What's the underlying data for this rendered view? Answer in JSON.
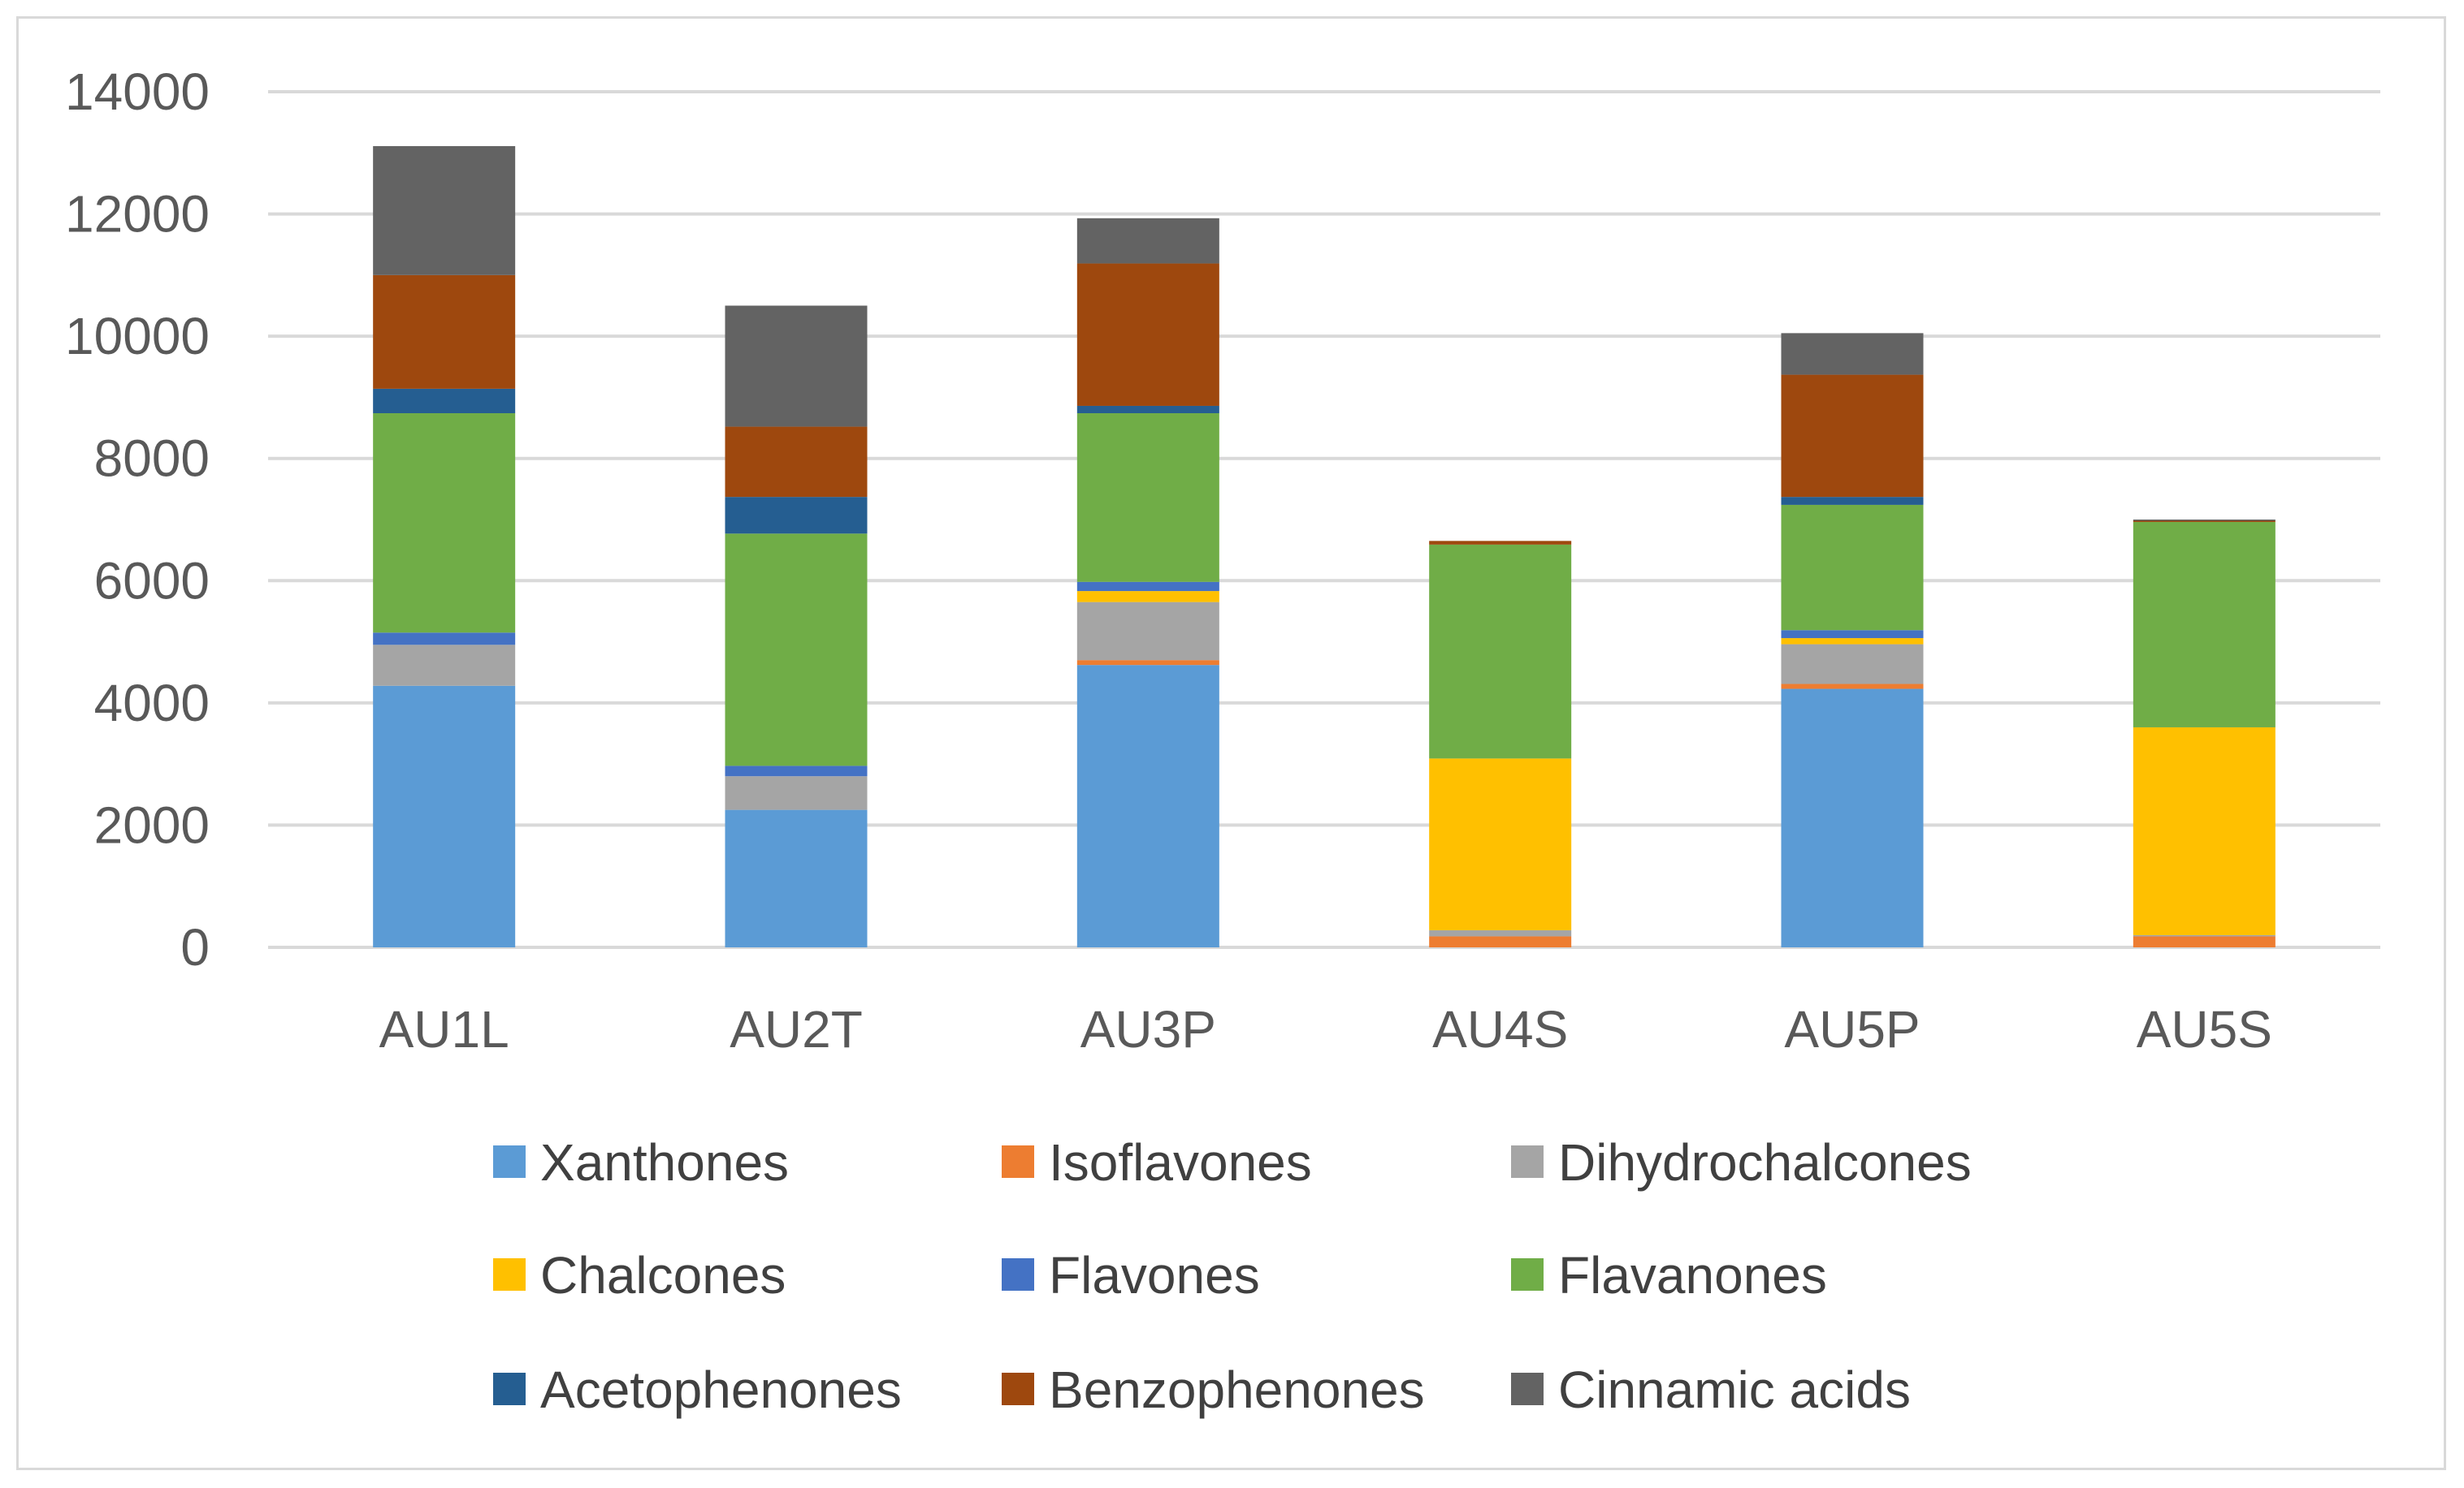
{
  "chart_data": {
    "type": "bar",
    "stacked": true,
    "title": "",
    "xlabel": "",
    "ylabel": "",
    "ylim": [
      0,
      14000
    ],
    "yticks": [
      0,
      2000,
      4000,
      6000,
      8000,
      10000,
      12000,
      14000
    ],
    "grid": true,
    "legend_position": "bottom",
    "categories": [
      "AU1L",
      "AU2T",
      "AU3P",
      "AU4S",
      "AU5P",
      "AU5S"
    ],
    "series": [
      {
        "name": "Xanthones",
        "color": "#5b9bd5",
        "values": [
          4280,
          2250,
          4620,
          0,
          4230,
          0
        ]
      },
      {
        "name": "Isoflavones",
        "color": "#ed7d31",
        "values": [
          0,
          0,
          80,
          180,
          80,
          180
        ]
      },
      {
        "name": "Dihydrochalcones",
        "color": "#a5a5a5",
        "values": [
          670,
          550,
          950,
          100,
          650,
          20
        ]
      },
      {
        "name": "Chalcones",
        "color": "#ffc000",
        "values": [
          0,
          0,
          180,
          2810,
          100,
          3400
        ]
      },
      {
        "name": "Flavones",
        "color": "#4472c4",
        "values": [
          200,
          170,
          150,
          0,
          130,
          0
        ]
      },
      {
        "name": "Flavanones",
        "color": "#70ad47",
        "values": [
          3590,
          3800,
          2760,
          3500,
          2050,
          3360
        ]
      },
      {
        "name": "Acetophenones",
        "color": "#255e91",
        "values": [
          400,
          600,
          120,
          0,
          130,
          0
        ]
      },
      {
        "name": "Benzophenones",
        "color": "#9e480e",
        "values": [
          1860,
          1150,
          2330,
          60,
          2000,
          20
        ]
      },
      {
        "name": "Cinnamic acids",
        "color": "#636363",
        "values": [
          2110,
          1980,
          740,
          0,
          680,
          20
        ]
      }
    ]
  }
}
